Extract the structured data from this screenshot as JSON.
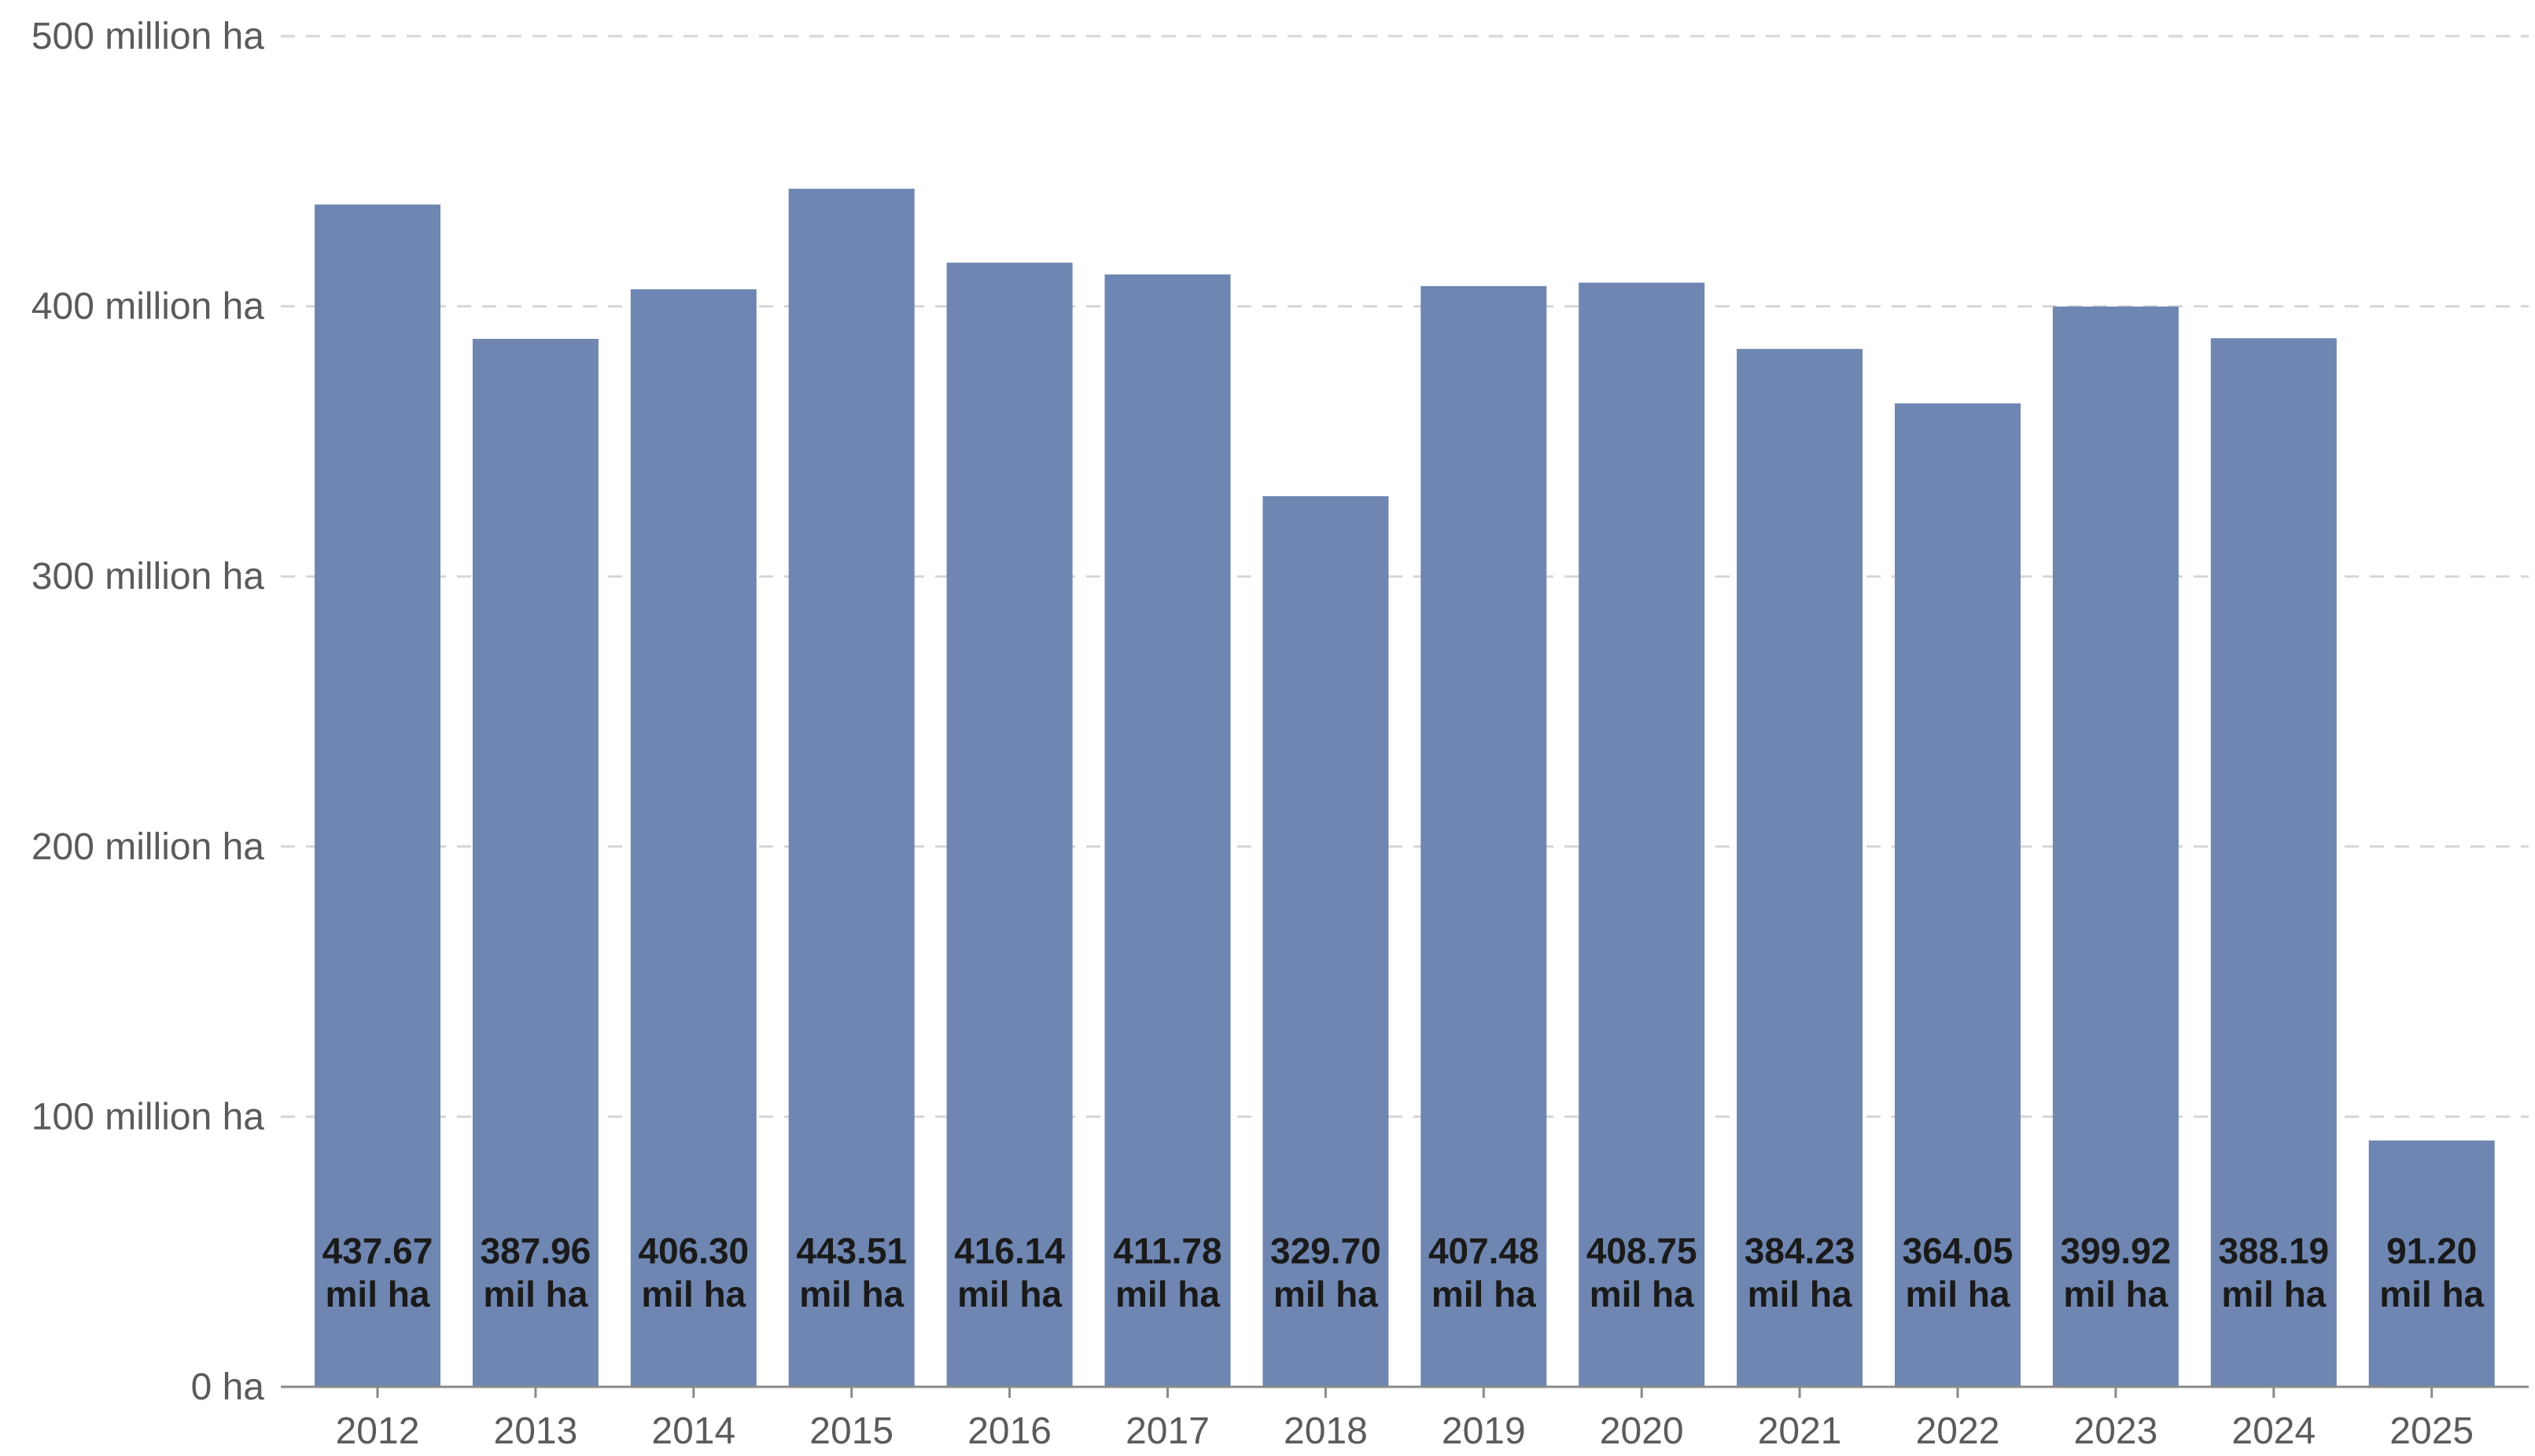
{
  "chart_data": {
    "type": "bar",
    "categories": [
      "2012",
      "2013",
      "2014",
      "2015",
      "2016",
      "2017",
      "2018",
      "2019",
      "2020",
      "2021",
      "2022",
      "2023",
      "2024",
      "2025"
    ],
    "series": [
      {
        "values": [
          437.67,
          387.96,
          406.3,
          443.51,
          416.14,
          411.78,
          329.7,
          407.48,
          408.75,
          384.23,
          364.05,
          399.92,
          388.19,
          91.2
        ],
        "labels": [
          [
            "437.67",
            "mil ha"
          ],
          [
            "387.96",
            "mil ha"
          ],
          [
            "406.30",
            "mil ha"
          ],
          [
            "443.51",
            "mil ha"
          ],
          [
            "416.14",
            "mil ha"
          ],
          [
            "411.78",
            "mil ha"
          ],
          [
            "329.70",
            "mil ha"
          ],
          [
            "407.48",
            "mil ha"
          ],
          [
            "408.75",
            "mil ha"
          ],
          [
            "384.23",
            "mil ha"
          ],
          [
            "364.05",
            "mil ha"
          ],
          [
            "399.92",
            "mil ha"
          ],
          [
            "388.19",
            "mil ha"
          ],
          [
            "91.20",
            "mil ha"
          ]
        ]
      }
    ],
    "unit": "million ha",
    "ylim": [
      0,
      500
    ],
    "yticks": [
      {
        "value": 0,
        "label": "0 ha"
      },
      {
        "value": 100,
        "label": "100 million ha"
      },
      {
        "value": 200,
        "label": "200 million ha"
      },
      {
        "value": 300,
        "label": "300 million ha"
      },
      {
        "value": 400,
        "label": "400 million ha"
      },
      {
        "value": 500,
        "label": "500 million ha"
      }
    ],
    "title": "",
    "xlabel": "",
    "ylabel": "",
    "grid": "horizontal dashed",
    "legend": "none",
    "colors": {
      "bar": "#6e86b1",
      "gridline": "#d6d6d6",
      "axis": "#8a8a8a",
      "tick_text": "#5b5b5b",
      "bar_label_text": "#1a1a1a"
    }
  }
}
